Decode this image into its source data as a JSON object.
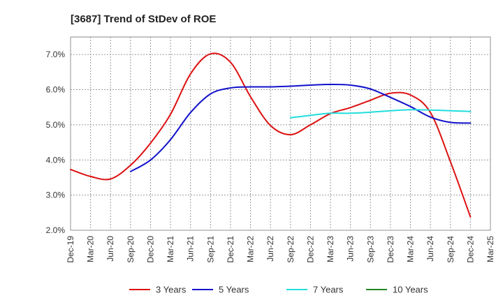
{
  "chart_data": {
    "type": "line",
    "title": "[3687]  Trend of StDev of ROE",
    "xlabel": "",
    "ylabel": "",
    "y_tick_labels": [
      "2.0%",
      "3.0%",
      "4.0%",
      "5.0%",
      "6.0%",
      "7.0%"
    ],
    "y_ticks": [
      2.0,
      3.0,
      4.0,
      5.0,
      6.0,
      7.0
    ],
    "ylim": [
      2.0,
      7.5
    ],
    "x_tick_labels": [
      "Dec-19",
      "Mar-20",
      "Jun-20",
      "Sep-20",
      "Dec-20",
      "Mar-21",
      "Jun-21",
      "Sep-21",
      "Dec-21",
      "Mar-22",
      "Jun-22",
      "Sep-22",
      "Dec-22",
      "Mar-23",
      "Jun-23",
      "Sep-23",
      "Dec-23",
      "Mar-24",
      "Jun-24",
      "Sep-24",
      "Dec-24",
      "Mar-25"
    ],
    "grid": true,
    "legend_position": "bottom",
    "series": [
      {
        "name": "3 Years",
        "color": "#dd1111",
        "values": [
          3.73,
          3.53,
          3.46,
          3.85,
          4.48,
          5.3,
          6.45,
          7.02,
          6.78,
          5.8,
          4.98,
          4.72,
          5.0,
          5.32,
          5.49,
          5.7,
          5.9,
          5.85,
          5.35,
          3.95,
          2.38,
          null
        ]
      },
      {
        "name": "5 Years",
        "color": "#1111cc",
        "values": [
          null,
          null,
          null,
          3.67,
          4.0,
          4.58,
          5.35,
          5.88,
          6.05,
          6.08,
          6.08,
          6.1,
          6.13,
          6.15,
          6.13,
          6.02,
          5.78,
          5.52,
          5.22,
          5.07,
          5.05,
          null
        ]
      },
      {
        "name": "7 Years",
        "color": "#22dddd",
        "values": [
          null,
          null,
          null,
          null,
          null,
          null,
          null,
          null,
          null,
          null,
          null,
          5.2,
          5.27,
          5.33,
          5.33,
          5.36,
          5.4,
          5.43,
          5.42,
          5.4,
          5.38,
          null
        ]
      },
      {
        "name": "10 Years",
        "color": "#228822",
        "values": [
          null,
          null,
          null,
          null,
          null,
          null,
          null,
          null,
          null,
          null,
          null,
          null,
          null,
          null,
          null,
          null,
          null,
          null,
          null,
          null,
          null,
          null
        ]
      }
    ]
  }
}
